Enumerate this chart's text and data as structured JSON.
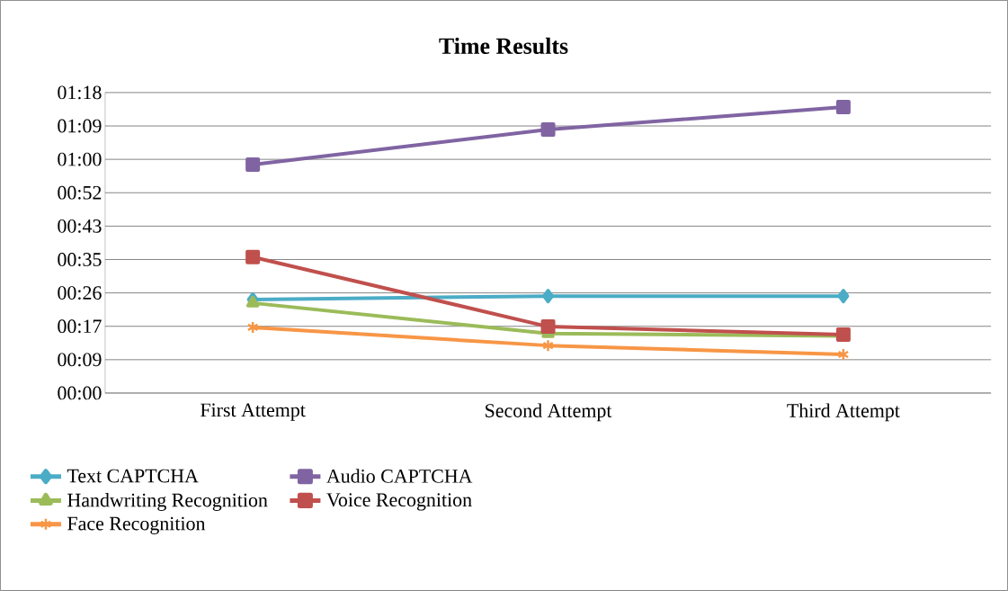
{
  "chart_data": {
    "type": "line",
    "title": "Time Results",
    "categories": [
      "First Attempt",
      "Second Attempt",
      "Third Attempt"
    ],
    "series": [
      {
        "name": "Text CAPTCHA",
        "color": "#4bacc6",
        "marker": "diamond",
        "values": [
          24.2,
          25.1,
          25.1
        ]
      },
      {
        "name": "Audio CAPTCHA",
        "color": "#8064a2",
        "marker": "square",
        "values": [
          59.1,
          68.2,
          74.0
        ]
      },
      {
        "name": "Handwriting Recognition",
        "color": "#9bbb59",
        "marker": "triangle",
        "values": [
          23.3,
          15.4,
          14.8
        ]
      },
      {
        "name": "Voice Recognition",
        "color": "#c0504d",
        "marker": "square",
        "values": [
          35.2,
          17.2,
          15.1
        ]
      },
      {
        "name": "Face Recognition",
        "color": "#f79646",
        "marker": "cross",
        "values": [
          17.0,
          12.3,
          10.0
        ]
      }
    ],
    "ylim": [
      0,
      77.76
    ],
    "yticks": [
      {
        "value": 0,
        "label": "00:00"
      },
      {
        "value": 8.64,
        "label": "00:09"
      },
      {
        "value": 17.28,
        "label": "00:17"
      },
      {
        "value": 25.92,
        "label": "00:26"
      },
      {
        "value": 34.56,
        "label": "00:35"
      },
      {
        "value": 43.2,
        "label": "00:43"
      },
      {
        "value": 51.84,
        "label": "00:52"
      },
      {
        "value": 60.48,
        "label": "01:00"
      },
      {
        "value": 69.12,
        "label": "01:09"
      },
      {
        "value": 77.76,
        "label": "01:18"
      }
    ],
    "grid": "y",
    "legend": "bottom",
    "line_style": "solid"
  }
}
